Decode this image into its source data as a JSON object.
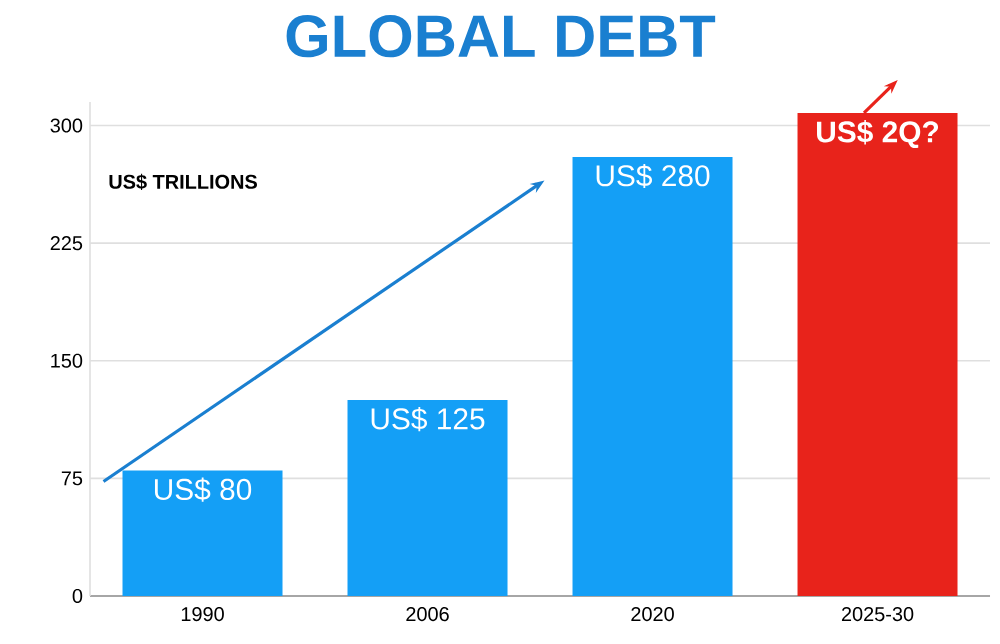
{
  "chart_data": {
    "type": "bar",
    "title": "GLOBAL DEBT",
    "ylabel": "US$ TRILLIONS",
    "categories": [
      "1990",
      "2006",
      "2020",
      "2025-30"
    ],
    "values": [
      80,
      125,
      280,
      308
    ],
    "colors": [
      "#149ff6",
      "#149ff6",
      "#149ff6",
      "#e8231b"
    ],
    "value_labels": [
      "US$ 80",
      "US$ 125",
      "US$ 280",
      "**US$ 2Q?**"
    ],
    "ylim": [
      0,
      315
    ],
    "yticks": [
      0,
      75,
      150,
      225,
      300
    ],
    "grid": "y"
  }
}
